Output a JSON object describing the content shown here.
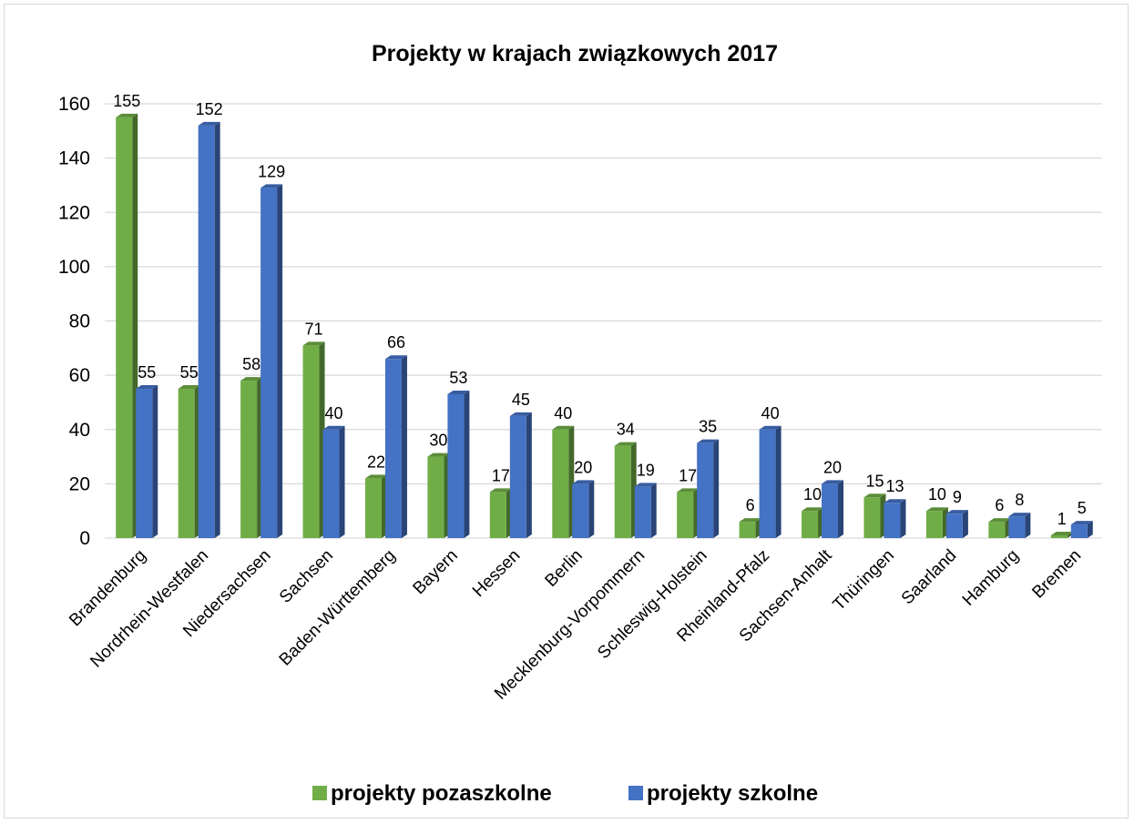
{
  "chart_data": {
    "type": "bar",
    "title": "Projekty w krajach związkowych 2017",
    "xlabel": "",
    "ylabel": "",
    "ylim": [
      0,
      160
    ],
    "yticks": [
      0,
      20,
      40,
      60,
      80,
      100,
      120,
      140,
      160
    ],
    "grid": true,
    "legend_position": "bottom",
    "categories": [
      "Brandenburg",
      "Nordrhein-Westfalen",
      "Niedersachsen",
      "Sachsen",
      "Baden-Württemberg",
      "Bayern",
      "Hessen",
      "Berlin",
      "Mecklenburg-Vorpommern",
      "Schleswig-Holstein",
      "Rheinland-Pfalz",
      "Sachsen-Anhalt",
      "Thüringen",
      "Saarland",
      "Hamburg",
      "Bremen"
    ],
    "series": [
      {
        "name": "projekty pozaszkolne",
        "color": "#70ad47",
        "values": [
          155,
          55,
          58,
          71,
          22,
          30,
          17,
          40,
          34,
          17,
          6,
          10,
          15,
          10,
          6,
          1
        ]
      },
      {
        "name": "projekty szkolne",
        "color": "#4472c4",
        "values": [
          55,
          152,
          129,
          40,
          66,
          53,
          45,
          20,
          19,
          35,
          40,
          20,
          13,
          9,
          8,
          5
        ]
      }
    ]
  }
}
